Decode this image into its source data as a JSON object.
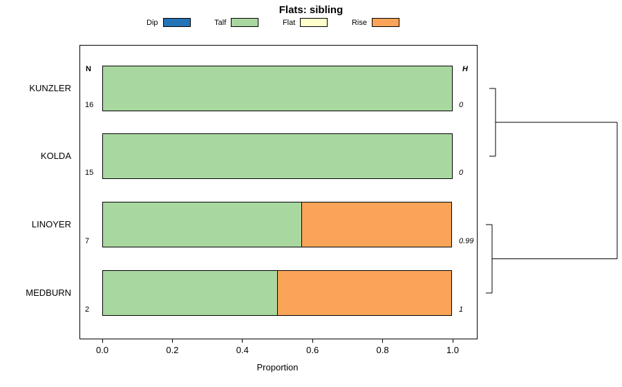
{
  "chart_data": {
    "type": "bar",
    "orientation": "horizontal",
    "stacked": true,
    "title": "Flats: sibling",
    "xlabel": "Proportion",
    "xlim": [
      0,
      1
    ],
    "xticks": [
      0,
      0.2,
      0.4,
      0.6,
      0.8,
      1
    ],
    "xtick_labels": [
      "0.0",
      "0.2",
      "0.4",
      "0.6",
      "0.8",
      "1.0"
    ],
    "categories": [
      "KUNZLER",
      "KOLDA",
      "LINOYER",
      "MEDBURN"
    ],
    "col_headers": {
      "left": "N",
      "right": "H"
    },
    "n_values": [
      16,
      15,
      7,
      2
    ],
    "h_values": [
      "0",
      "0",
      "0.99",
      "1"
    ],
    "legend_position": "top",
    "grid": false,
    "series": [
      {
        "name": "Dip",
        "color": "#2574B7",
        "values": [
          0,
          0,
          0,
          0
        ]
      },
      {
        "name": "Talf",
        "color": "#A8D8A0",
        "values": [
          1,
          1,
          0.57,
          0.5
        ]
      },
      {
        "name": "Flat",
        "color": "#FFFFCC",
        "values": [
          0,
          0,
          0,
          0
        ]
      },
      {
        "name": "Rise",
        "color": "#F9A459",
        "values": [
          0,
          0,
          0.43,
          0.5
        ]
      }
    ],
    "dendrogram": {
      "pairs": [
        {
          "members": [
            "KUNZLER",
            "KOLDA"
          ],
          "rows": [
            0,
            1
          ],
          "height": "0"
        },
        {
          "members": [
            "LINOYER",
            "MEDBURN"
          ],
          "rows": [
            2,
            3
          ],
          "height": "0.99"
        }
      ],
      "root": "all-join"
    }
  }
}
